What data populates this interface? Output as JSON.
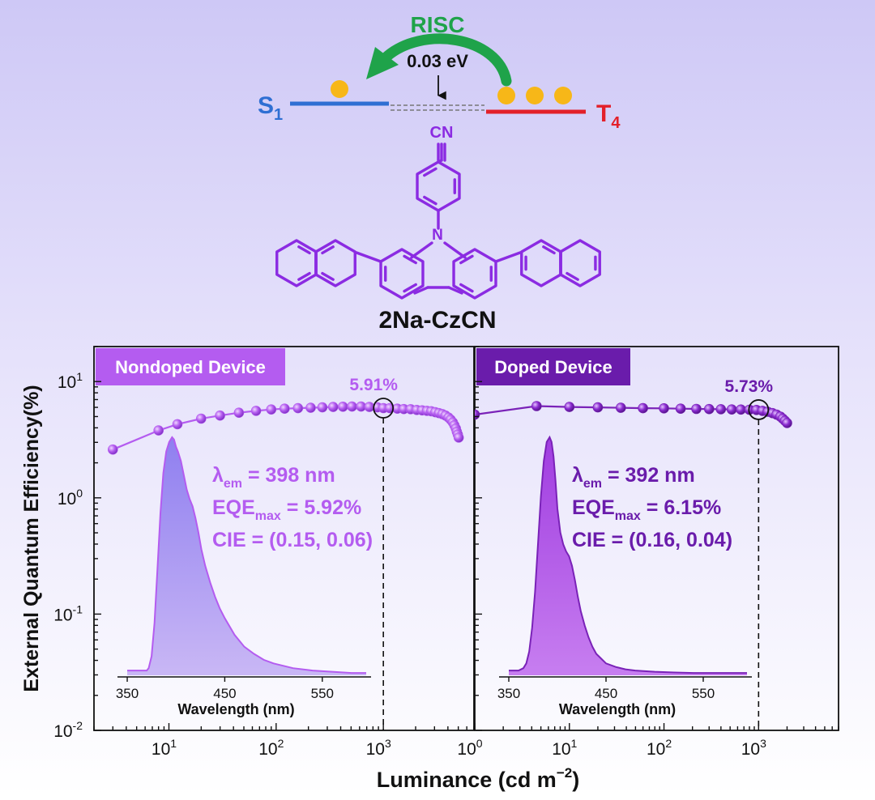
{
  "colors": {
    "bg_top": "#cec8f6",
    "bg_bottom": "#ffffff",
    "s1_line": "#2f6fd3",
    "t4_line": "#e3202a",
    "risc_arrow": "#1fa34a",
    "electron": "#f7b718",
    "molecule": "#8b2be2",
    "nondoped": "#b45cf0",
    "nondoped_fill": "#9b8cf0",
    "doped": "#7a22b8",
    "doped_fill": "#b046e6"
  },
  "energy_diagram": {
    "risc_label": "RISC",
    "gap_label": "0.03 eV",
    "s1_label": "S",
    "s1_sub": "1",
    "t4_label": "T",
    "t4_sub": "4",
    "s1_electrons": 1,
    "t4_electrons": 3
  },
  "molecule": {
    "name": "2Na-CzCN",
    "cn_label": "CN",
    "n_label": "N"
  },
  "chart_data": [
    {
      "type": "line",
      "panel_label": "Nondoped Device",
      "x_scale": "log",
      "y_scale": "log",
      "xlim": [
        2,
        7000
      ],
      "ylim": [
        0.01,
        20
      ],
      "x_ticks": [
        10,
        100,
        1000
      ],
      "x_tick_labels": [
        {
          "base": "10",
          "exp": "1"
        },
        {
          "base": "10",
          "exp": "2"
        },
        {
          "base": "10",
          "exp": "3"
        }
      ],
      "y_ticks": [
        0.01,
        0.1,
        1,
        10
      ],
      "y_tick_labels": [
        {
          "base": "10",
          "exp": "-2"
        },
        {
          "base": "10",
          "exp": "-1"
        },
        {
          "base": "10",
          "exp": "0"
        },
        {
          "base": "10",
          "exp": "1"
        }
      ],
      "series": [
        {
          "x": [
            3,
            8,
            12,
            20,
            30,
            45,
            65,
            90,
            120,
            160,
            210,
            270,
            340,
            420,
            510,
            620,
            740,
            880,
            1000,
            1150,
            1350,
            1550,
            1800,
            2050,
            2300,
            2550,
            2800,
            3050,
            3300,
            3550,
            3800,
            4050,
            4250,
            4450,
            4600,
            4750,
            4850,
            4950,
            5050
          ],
          "y": [
            2.6,
            3.8,
            4.3,
            4.8,
            5.1,
            5.4,
            5.6,
            5.75,
            5.85,
            5.9,
            5.95,
            6.0,
            6.05,
            6.08,
            6.1,
            6.1,
            6.05,
            6.0,
            5.91,
            5.9,
            5.85,
            5.8,
            5.78,
            5.7,
            5.65,
            5.6,
            5.55,
            5.45,
            5.35,
            5.25,
            5.1,
            4.9,
            4.7,
            4.45,
            4.2,
            3.95,
            3.7,
            3.5,
            3.3
          ]
        }
      ],
      "annotation": {
        "x": 1000,
        "y": 5.91,
        "label": "5.91%"
      },
      "properties": {
        "lambda_text": "λ",
        "lambda_sub": "em",
        "lambda_value": " = 398 nm",
        "eqe_text": "EQE",
        "eqe_sub": "max",
        "eqe_value": " = 5.92%",
        "cie_text": "CIE = (0.15, 0.06)"
      },
      "inset": {
        "type": "area",
        "xlabel": "Wavelength (nm)",
        "xlim": [
          340,
          600
        ],
        "x_ticks": [
          350,
          450,
          550
        ],
        "x": [
          350,
          360,
          370,
          372,
          375,
          378,
          381,
          384,
          387,
          390,
          393,
          396,
          398,
          400,
          402,
          405,
          408,
          411,
          414,
          417,
          420,
          423,
          426,
          430,
          435,
          440,
          445,
          450,
          460,
          470,
          480,
          490,
          500,
          520,
          540,
          560,
          580,
          595
        ],
        "y": [
          0.02,
          0.02,
          0.02,
          0.03,
          0.08,
          0.22,
          0.45,
          0.68,
          0.85,
          0.94,
          0.98,
          1.0,
          0.99,
          0.96,
          0.94,
          0.9,
          0.84,
          0.78,
          0.74,
          0.71,
          0.66,
          0.6,
          0.53,
          0.46,
          0.39,
          0.33,
          0.28,
          0.24,
          0.17,
          0.12,
          0.09,
          0.065,
          0.05,
          0.03,
          0.02,
          0.015,
          0.01,
          0.01
        ]
      }
    },
    {
      "type": "line",
      "panel_label": "Doped Device",
      "x_scale": "log",
      "y_scale": "log",
      "xlim": [
        1,
        7000
      ],
      "ylim": [
        0.01,
        20
      ],
      "x_ticks": [
        1,
        10,
        100,
        1000
      ],
      "x_tick_labels": [
        {
          "base": "10",
          "exp": "0"
        },
        {
          "base": "10",
          "exp": "1"
        },
        {
          "base": "10",
          "exp": "2"
        },
        {
          "base": "10",
          "exp": "3"
        }
      ],
      "y_ticks": [
        0.01,
        0.1,
        1,
        10
      ],
      "y_tick_labels": [],
      "series": [
        {
          "x": [
            1,
            4.5,
            10,
            20,
            35,
            60,
            100,
            150,
            220,
            300,
            400,
            520,
            650,
            800,
            950,
            1100,
            1250,
            1400,
            1550,
            1700,
            1800,
            1900,
            2000
          ],
          "y": [
            5.2,
            6.15,
            6.05,
            6.0,
            5.95,
            5.9,
            5.88,
            5.85,
            5.82,
            5.8,
            5.78,
            5.75,
            5.74,
            5.73,
            5.7,
            5.6,
            5.5,
            5.35,
            5.2,
            5.0,
            4.8,
            4.6,
            4.4
          ]
        }
      ],
      "annotation": {
        "x": 1000,
        "y": 5.73,
        "label": "5.73%"
      },
      "properties": {
        "lambda_text": "λ",
        "lambda_sub": "em",
        "lambda_value": " = 392 nm",
        "eqe_text": "EQE",
        "eqe_sub": "max",
        "eqe_value": " = 6.15%",
        "cie_text": "CIE = (0.16, 0.04)"
      },
      "inset": {
        "type": "area",
        "xlabel": "Wavelength (nm)",
        "xlim": [
          340,
          600
        ],
        "x_ticks": [
          350,
          450,
          550
        ],
        "x": [
          350,
          360,
          365,
          368,
          371,
          374,
          377,
          380,
          383,
          386,
          389,
          392,
          394,
          396,
          398,
          400,
          403,
          406,
          409,
          412,
          415,
          418,
          421,
          424,
          428,
          432,
          436,
          440,
          445,
          450,
          460,
          470,
          480,
          500,
          520,
          540,
          560,
          580,
          595
        ],
        "y": [
          0.02,
          0.02,
          0.03,
          0.05,
          0.1,
          0.2,
          0.35,
          0.55,
          0.75,
          0.9,
          0.98,
          1.0,
          0.98,
          0.92,
          0.82,
          0.7,
          0.6,
          0.55,
          0.52,
          0.5,
          0.46,
          0.4,
          0.33,
          0.27,
          0.21,
          0.16,
          0.12,
          0.09,
          0.07,
          0.05,
          0.035,
          0.025,
          0.02,
          0.015,
          0.012,
          0.01,
          0.01,
          0.01,
          0.01
        ]
      }
    }
  ],
  "axes": {
    "y_label": "External Quantum Efficiency(%)",
    "x_label": "Luminance (cd m",
    "x_label_sup": "−2",
    "x_label_end": ")"
  }
}
